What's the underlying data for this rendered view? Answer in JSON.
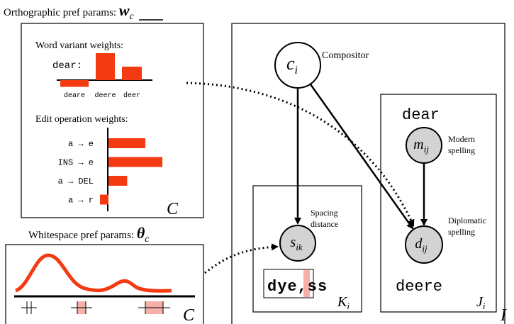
{
  "orthographic": {
    "title": "Orthographic pref params:",
    "symbol": "w",
    "subscript": "c",
    "word_variant": {
      "heading": "Word variant weights:",
      "word": "dear:",
      "labels": [
        "deare",
        "deere",
        "deer"
      ],
      "values": [
        -0.25,
        1,
        0.5
      ]
    },
    "edit_operation": {
      "heading": "Edit operation weights:",
      "labels": [
        "a → e",
        "INS → e",
        "a → DEL",
        "a → r"
      ],
      "values": [
        0.65,
        0.95,
        0.33,
        -0.15
      ]
    },
    "plate": "C"
  },
  "whitespace": {
    "title": "Whitespace pref params:",
    "symbol": "θ",
    "subscript": "c",
    "plate": "C"
  },
  "model": {
    "plate": "I",
    "compositor": {
      "symbol": "c",
      "subscript": "i",
      "label": "Compositor"
    },
    "spacing": {
      "symbol": "s",
      "subscript": "ik",
      "label": [
        "Spacing",
        "distance"
      ],
      "plate_symbol": "K",
      "plate_subscript": "i",
      "image_text": "dye,ss"
    },
    "modern": {
      "symbol": "m",
      "subscript": "ij",
      "label": [
        "Modern",
        "spelling"
      ],
      "word": "dear"
    },
    "diplomatic": {
      "symbol": "d",
      "subscript": "ij",
      "label": [
        "Diplomatic",
        "spelling"
      ],
      "word": "deere",
      "plate_symbol": "J",
      "plate_subscript": "i"
    }
  }
}
